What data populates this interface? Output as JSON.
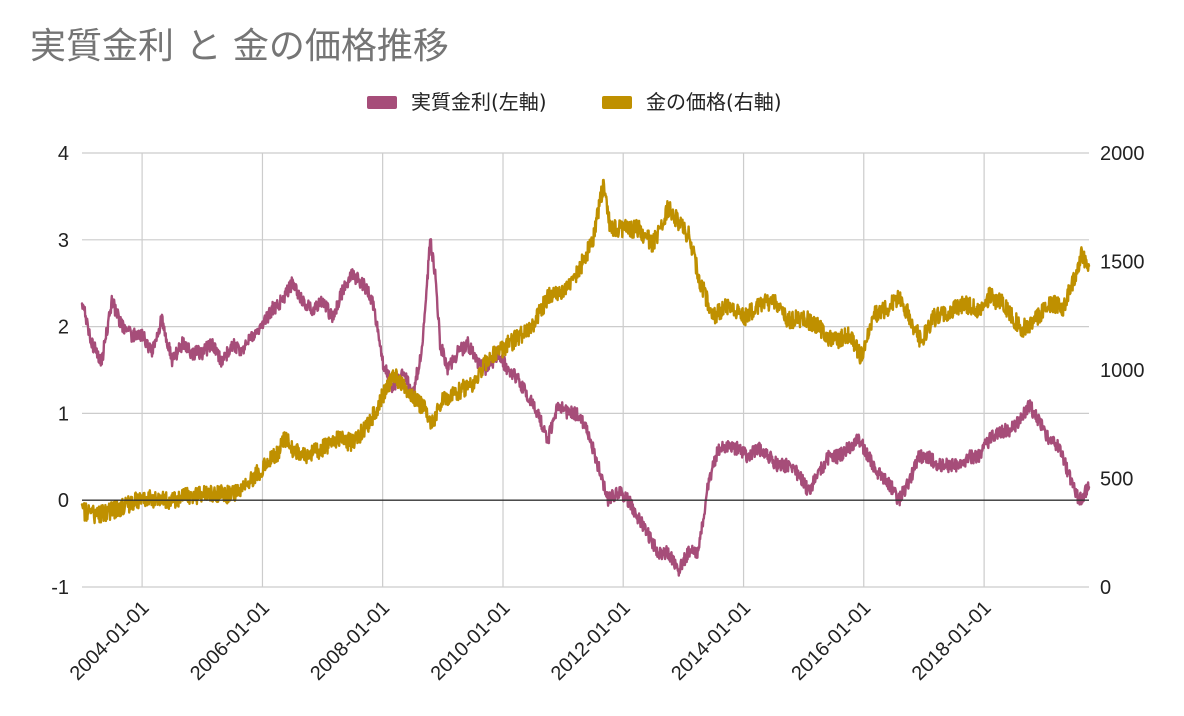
{
  "chart_data": {
    "type": "line",
    "title": "実質金利 と 金の価格推移",
    "legend_position": "top",
    "grid": true,
    "xlim": [
      "2003-01-01",
      "2019-09-30"
    ],
    "x_ticks": [
      "2004-01-01",
      "2006-01-01",
      "2008-01-01",
      "2010-01-01",
      "2012-01-01",
      "2014-01-01",
      "2016-01-01",
      "2018-01-01"
    ],
    "y_left": {
      "lim": [
        -1,
        4
      ],
      "ticks": [
        "-1",
        "0",
        "1",
        "2",
        "3",
        "4"
      ]
    },
    "y_right": {
      "lim": [
        0,
        2000
      ],
      "ticks": [
        "0",
        "500",
        "1000",
        "1500",
        "2000"
      ]
    },
    "series": [
      {
        "name": "実質金利(左軸)",
        "axis": "left",
        "color": "#a64d79",
        "points": [
          [
            "2003-01-01",
            2.3
          ],
          [
            "2003-03-01",
            1.8
          ],
          [
            "2003-05-01",
            1.6
          ],
          [
            "2003-07-01",
            2.3
          ],
          [
            "2003-09-01",
            2.0
          ],
          [
            "2003-11-01",
            1.9
          ],
          [
            "2004-01-01",
            1.9
          ],
          [
            "2004-03-01",
            1.7
          ],
          [
            "2004-05-01",
            2.1
          ],
          [
            "2004-07-01",
            1.6
          ],
          [
            "2004-09-01",
            1.8
          ],
          [
            "2004-11-01",
            1.7
          ],
          [
            "2005-01-01",
            1.7
          ],
          [
            "2005-03-01",
            1.8
          ],
          [
            "2005-05-01",
            1.6
          ],
          [
            "2005-07-01",
            1.8
          ],
          [
            "2005-09-01",
            1.7
          ],
          [
            "2005-11-01",
            1.9
          ],
          [
            "2006-01-01",
            2.0
          ],
          [
            "2006-03-01",
            2.2
          ],
          [
            "2006-05-01",
            2.3
          ],
          [
            "2006-07-01",
            2.5
          ],
          [
            "2006-09-01",
            2.3
          ],
          [
            "2006-11-01",
            2.2
          ],
          [
            "2007-01-01",
            2.3
          ],
          [
            "2007-03-01",
            2.1
          ],
          [
            "2007-05-01",
            2.4
          ],
          [
            "2007-07-01",
            2.6
          ],
          [
            "2007-09-01",
            2.5
          ],
          [
            "2007-11-01",
            2.3
          ],
          [
            "2008-01-01",
            1.6
          ],
          [
            "2008-03-01",
            1.3
          ],
          [
            "2008-05-01",
            1.5
          ],
          [
            "2008-07-01",
            1.2
          ],
          [
            "2008-09-01",
            1.8
          ],
          [
            "2008-10-15",
            3.0
          ],
          [
            "2008-11-15",
            2.6
          ],
          [
            "2008-12-15",
            1.8
          ],
          [
            "2009-02-01",
            1.5
          ],
          [
            "2009-04-01",
            1.7
          ],
          [
            "2009-06-01",
            1.8
          ],
          [
            "2009-08-01",
            1.6
          ],
          [
            "2009-10-01",
            1.5
          ],
          [
            "2009-12-01",
            1.7
          ],
          [
            "2010-02-01",
            1.5
          ],
          [
            "2010-04-01",
            1.4
          ],
          [
            "2010-06-01",
            1.2
          ],
          [
            "2010-08-01",
            1.0
          ],
          [
            "2010-10-01",
            0.7
          ],
          [
            "2010-12-01",
            1.1
          ],
          [
            "2011-02-01",
            1.0
          ],
          [
            "2011-04-01",
            1.0
          ],
          [
            "2011-06-01",
            0.8
          ],
          [
            "2011-08-01",
            0.4
          ],
          [
            "2011-10-01",
            0.0
          ],
          [
            "2011-12-01",
            0.1
          ],
          [
            "2012-02-01",
            0.0
          ],
          [
            "2012-04-01",
            -0.2
          ],
          [
            "2012-06-01",
            -0.4
          ],
          [
            "2012-08-01",
            -0.6
          ],
          [
            "2012-10-01",
            -0.6
          ],
          [
            "2012-12-01",
            -0.8
          ],
          [
            "2013-02-01",
            -0.6
          ],
          [
            "2013-04-01",
            -0.6
          ],
          [
            "2013-06-01",
            0.2
          ],
          [
            "2013-08-01",
            0.6
          ],
          [
            "2013-10-01",
            0.6
          ],
          [
            "2013-12-01",
            0.6
          ],
          [
            "2014-02-01",
            0.5
          ],
          [
            "2014-04-01",
            0.6
          ],
          [
            "2014-06-01",
            0.5
          ],
          [
            "2014-08-01",
            0.4
          ],
          [
            "2014-10-01",
            0.4
          ],
          [
            "2014-12-01",
            0.3
          ],
          [
            "2015-02-01",
            0.1
          ],
          [
            "2015-04-01",
            0.3
          ],
          [
            "2015-06-01",
            0.5
          ],
          [
            "2015-08-01",
            0.5
          ],
          [
            "2015-10-01",
            0.6
          ],
          [
            "2015-12-01",
            0.7
          ],
          [
            "2016-02-01",
            0.5
          ],
          [
            "2016-04-01",
            0.3
          ],
          [
            "2016-06-01",
            0.2
          ],
          [
            "2016-08-01",
            0.0
          ],
          [
            "2016-10-01",
            0.2
          ],
          [
            "2016-12-01",
            0.5
          ],
          [
            "2017-02-01",
            0.5
          ],
          [
            "2017-04-01",
            0.4
          ],
          [
            "2017-06-01",
            0.4
          ],
          [
            "2017-08-01",
            0.4
          ],
          [
            "2017-10-01",
            0.5
          ],
          [
            "2017-12-01",
            0.5
          ],
          [
            "2018-02-01",
            0.7
          ],
          [
            "2018-04-01",
            0.8
          ],
          [
            "2018-06-01",
            0.8
          ],
          [
            "2018-08-01",
            0.9
          ],
          [
            "2018-10-01",
            1.1
          ],
          [
            "2018-12-01",
            0.9
          ],
          [
            "2019-02-01",
            0.7
          ],
          [
            "2019-04-01",
            0.6
          ],
          [
            "2019-06-01",
            0.3
          ],
          [
            "2019-08-01",
            0.0
          ],
          [
            "2019-09-30",
            0.15
          ]
        ]
      },
      {
        "name": "金の価格(右軸)",
        "axis": "right",
        "color": "#bf9000",
        "points": [
          [
            "2003-01-01",
            350
          ],
          [
            "2003-04-01",
            330
          ],
          [
            "2003-07-01",
            350
          ],
          [
            "2003-10-01",
            380
          ],
          [
            "2004-01-01",
            410
          ],
          [
            "2004-04-01",
            400
          ],
          [
            "2004-07-01",
            395
          ],
          [
            "2004-10-01",
            420
          ],
          [
            "2005-01-01",
            425
          ],
          [
            "2005-04-01",
            430
          ],
          [
            "2005-07-01",
            425
          ],
          [
            "2005-10-01",
            470
          ],
          [
            "2006-01-01",
            550
          ],
          [
            "2006-04-01",
            610
          ],
          [
            "2006-05-15",
            690
          ],
          [
            "2006-07-01",
            630
          ],
          [
            "2006-10-01",
            600
          ],
          [
            "2007-01-01",
            640
          ],
          [
            "2007-04-01",
            680
          ],
          [
            "2007-07-01",
            665
          ],
          [
            "2007-10-01",
            740
          ],
          [
            "2008-01-01",
            880
          ],
          [
            "2008-03-15",
            980
          ],
          [
            "2008-06-01",
            890
          ],
          [
            "2008-09-01",
            830
          ],
          [
            "2008-11-01",
            750
          ],
          [
            "2009-01-01",
            870
          ],
          [
            "2009-04-01",
            900
          ],
          [
            "2009-07-01",
            940
          ],
          [
            "2009-10-01",
            1050
          ],
          [
            "2010-01-01",
            1100
          ],
          [
            "2010-04-01",
            1150
          ],
          [
            "2010-07-01",
            1200
          ],
          [
            "2010-10-01",
            1340
          ],
          [
            "2011-01-01",
            1370
          ],
          [
            "2011-04-01",
            1450
          ],
          [
            "2011-07-01",
            1600
          ],
          [
            "2011-09-01",
            1850
          ],
          [
            "2011-10-15",
            1650
          ],
          [
            "2012-01-01",
            1650
          ],
          [
            "2012-04-01",
            1650
          ],
          [
            "2012-07-01",
            1580
          ],
          [
            "2012-10-01",
            1750
          ],
          [
            "2012-12-01",
            1680
          ],
          [
            "2013-02-01",
            1620
          ],
          [
            "2013-04-15",
            1400
          ],
          [
            "2013-07-01",
            1250
          ],
          [
            "2013-10-01",
            1300
          ],
          [
            "2014-01-01",
            1240
          ],
          [
            "2014-04-01",
            1300
          ],
          [
            "2014-07-01",
            1320
          ],
          [
            "2014-10-01",
            1230
          ],
          [
            "2015-01-01",
            1240
          ],
          [
            "2015-04-01",
            1200
          ],
          [
            "2015-07-01",
            1130
          ],
          [
            "2015-10-01",
            1160
          ],
          [
            "2015-12-15",
            1060
          ],
          [
            "2016-03-01",
            1250
          ],
          [
            "2016-06-01",
            1290
          ],
          [
            "2016-08-01",
            1340
          ],
          [
            "2016-10-01",
            1250
          ],
          [
            "2016-12-15",
            1130
          ],
          [
            "2017-03-01",
            1240
          ],
          [
            "2017-06-01",
            1260
          ],
          [
            "2017-09-01",
            1310
          ],
          [
            "2017-12-01",
            1270
          ],
          [
            "2018-02-01",
            1340
          ],
          [
            "2018-05-01",
            1300
          ],
          [
            "2018-08-15",
            1190
          ],
          [
            "2018-11-01",
            1220
          ],
          [
            "2019-02-01",
            1310
          ],
          [
            "2019-05-01",
            1290
          ],
          [
            "2019-07-01",
            1420
          ],
          [
            "2019-08-15",
            1530
          ],
          [
            "2019-09-30",
            1480
          ]
        ]
      }
    ]
  }
}
